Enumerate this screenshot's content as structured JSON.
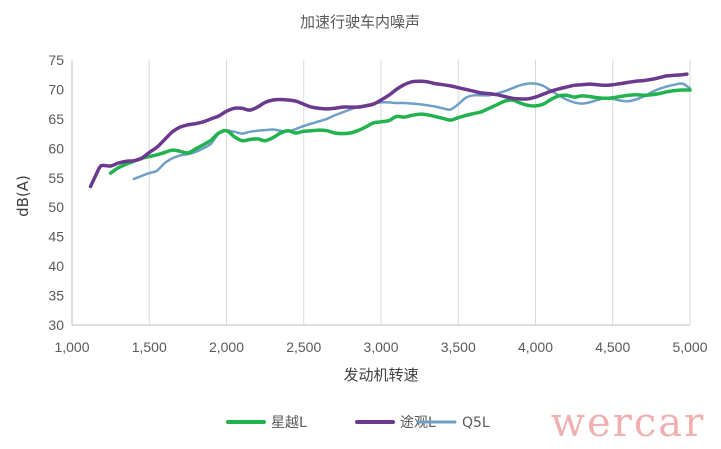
{
  "chart_data": {
    "type": "line",
    "title": "加速行驶车内噪声",
    "xlabel": "发动机转速",
    "ylabel": "dB(A)",
    "xlim": [
      1000,
      5000
    ],
    "ylim": [
      30,
      75
    ],
    "xticks": [
      1000,
      1500,
      2000,
      2500,
      3000,
      3500,
      4000,
      4500,
      5000
    ],
    "xtick_labels": [
      "1,000",
      "1,500",
      "2,000",
      "2,500",
      "3,000",
      "3,500",
      "4,000",
      "4,500",
      "5,000"
    ],
    "yticks": [
      30,
      35,
      40,
      45,
      50,
      55,
      60,
      65,
      70,
      75
    ],
    "ytick_labels": [
      "30",
      "35",
      "40",
      "45",
      "50",
      "55",
      "60",
      "65",
      "70",
      "75"
    ],
    "grid": "vertical",
    "legend_position": "bottom",
    "series": [
      {
        "name": "星越L",
        "color": "#22b34e",
        "x": [
          1250,
          1300,
          1350,
          1400,
          1450,
          1500,
          1550,
          1600,
          1650,
          1700,
          1750,
          1800,
          1850,
          1900,
          1950,
          2000,
          2050,
          2100,
          2150,
          2200,
          2250,
          2300,
          2350,
          2400,
          2450,
          2500,
          2550,
          2600,
          2650,
          2700,
          2750,
          2800,
          2850,
          2900,
          2950,
          3000,
          3050,
          3100,
          3150,
          3200,
          3250,
          3300,
          3350,
          3400,
          3450,
          3500,
          3550,
          3600,
          3650,
          3700,
          3750,
          3800,
          3850,
          3900,
          3950,
          4000,
          4050,
          4100,
          4150,
          4200,
          4250,
          4300,
          4350,
          4400,
          4450,
          4500,
          4550,
          4600,
          4650,
          4700,
          4750,
          4800,
          4850,
          4900,
          4950,
          5000
        ],
        "y": [
          55.8,
          56.7,
          57.3,
          57.8,
          58.3,
          58.6,
          58.9,
          59.3,
          59.7,
          59.5,
          59.2,
          59.9,
          60.6,
          61.4,
          62.6,
          63.0,
          62.0,
          61.3,
          61.5,
          61.6,
          61.3,
          61.8,
          62.6,
          63.0,
          62.6,
          62.9,
          63.0,
          63.1,
          63.0,
          62.6,
          62.5,
          62.6,
          63.0,
          63.6,
          64.3,
          64.5,
          64.7,
          65.4,
          65.3,
          65.6,
          65.8,
          65.7,
          65.4,
          65.1,
          64.8,
          65.2,
          65.6,
          65.9,
          66.2,
          66.8,
          67.4,
          68.0,
          68.2,
          67.7,
          67.3,
          67.2,
          67.5,
          68.3,
          68.9,
          69.0,
          68.7,
          68.9,
          68.8,
          68.6,
          68.5,
          68.6,
          68.8,
          69.0,
          69.1,
          69.0,
          69.1,
          69.3,
          69.6,
          69.8,
          69.9,
          69.9
        ]
      },
      {
        "name": "途观L",
        "color": "#6b3a8e",
        "x": [
          1120,
          1150,
          1180,
          1200,
          1250,
          1300,
          1350,
          1400,
          1450,
          1500,
          1550,
          1600,
          1650,
          1700,
          1750,
          1800,
          1850,
          1900,
          1950,
          2000,
          2050,
          2100,
          2150,
          2200,
          2250,
          2300,
          2350,
          2400,
          2450,
          2500,
          2550,
          2600,
          2650,
          2700,
          2750,
          2800,
          2850,
          2900,
          2950,
          3000,
          3050,
          3100,
          3150,
          3200,
          3250,
          3300,
          3350,
          3400,
          3450,
          3500,
          3550,
          3600,
          3650,
          3700,
          3750,
          3800,
          3850,
          3900,
          3950,
          4000,
          4050,
          4100,
          4150,
          4200,
          4250,
          4300,
          4350,
          4400,
          4450,
          4500,
          4550,
          4600,
          4650,
          4700,
          4750,
          4800,
          4850,
          4900,
          4950,
          4980
        ],
        "y": [
          53.5,
          55.2,
          56.8,
          57.1,
          57.0,
          57.5,
          57.8,
          57.9,
          58.3,
          59.3,
          60.2,
          61.5,
          62.8,
          63.6,
          64.0,
          64.2,
          64.5,
          65.0,
          65.5,
          66.3,
          66.8,
          66.8,
          66.5,
          67.0,
          67.8,
          68.2,
          68.3,
          68.2,
          68.0,
          67.5,
          67.0,
          66.8,
          66.7,
          66.8,
          67.0,
          67.0,
          67.0,
          67.2,
          67.5,
          68.2,
          69.0,
          70.0,
          70.8,
          71.3,
          71.4,
          71.3,
          71.0,
          70.8,
          70.6,
          70.3,
          70.0,
          69.7,
          69.4,
          69.3,
          69.1,
          68.8,
          68.5,
          68.4,
          68.4,
          68.7,
          69.2,
          69.7,
          70.1,
          70.4,
          70.7,
          70.8,
          70.9,
          70.8,
          70.7,
          70.8,
          71.0,
          71.2,
          71.4,
          71.5,
          71.7,
          72.0,
          72.3,
          72.4,
          72.5,
          72.6
        ]
      },
      {
        "name": "Q5L",
        "color": "#6f9fc4",
        "x": [
          1400,
          1450,
          1500,
          1550,
          1600,
          1650,
          1700,
          1750,
          1800,
          1850,
          1900,
          1950,
          2000,
          2050,
          2100,
          2150,
          2200,
          2250,
          2300,
          2350,
          2400,
          2450,
          2500,
          2550,
          2600,
          2650,
          2700,
          2750,
          2800,
          2850,
          2900,
          2950,
          3000,
          3050,
          3100,
          3150,
          3200,
          3250,
          3300,
          3350,
          3400,
          3450,
          3500,
          3550,
          3600,
          3650,
          3700,
          3750,
          3800,
          3850,
          3900,
          3950,
          4000,
          4050,
          4100,
          4150,
          4200,
          4250,
          4300,
          4350,
          4400,
          4450,
          4500,
          4550,
          4600,
          4650,
          4700,
          4750,
          4800,
          4850,
          4900,
          4950,
          5000
        ],
        "y": [
          54.8,
          55.3,
          55.8,
          56.2,
          57.5,
          58.3,
          58.8,
          59.0,
          59.4,
          60.0,
          60.8,
          62.5,
          63.0,
          62.8,
          62.5,
          62.8,
          63.0,
          63.1,
          63.2,
          63.0,
          62.9,
          63.3,
          63.8,
          64.2,
          64.6,
          65.0,
          65.6,
          66.1,
          66.6,
          67.0,
          67.3,
          67.6,
          67.8,
          67.8,
          67.7,
          67.7,
          67.6,
          67.5,
          67.3,
          67.1,
          66.8,
          66.6,
          67.5,
          68.6,
          69.0,
          69.0,
          69.0,
          69.3,
          69.7,
          70.2,
          70.7,
          71.0,
          71.0,
          70.6,
          69.8,
          69.0,
          68.3,
          67.8,
          67.6,
          67.8,
          68.2,
          68.5,
          68.4,
          68.1,
          68.0,
          68.3,
          68.8,
          69.5,
          70.1,
          70.5,
          70.8,
          71.0,
          70.2
        ]
      }
    ]
  },
  "watermark": {
    "text": "wercar",
    "color": "#f0b0b0"
  },
  "colors": {
    "gridline": "#d9d9d9",
    "axis": "#bfbfbf",
    "text": "#595959"
  }
}
